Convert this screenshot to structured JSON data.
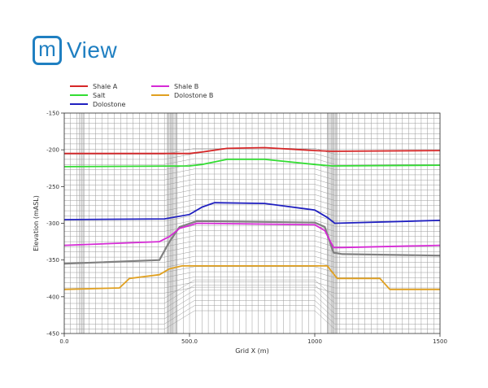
{
  "logo": {
    "mark": "m",
    "text": "View",
    "color": "#1f7fc1"
  },
  "chart_data": {
    "type": "line",
    "title": "",
    "xlabel": "Grid X  (m)",
    "ylabel": "Elevation  (mASL)",
    "xlim": [
      0,
      1500
    ],
    "ylim": [
      -450,
      -150
    ],
    "xticks": [
      {
        "value": 0,
        "label": "0.0"
      },
      {
        "value": 500,
        "label": "500.0"
      },
      {
        "value": 1000,
        "label": "1000"
      },
      {
        "value": 1500,
        "label": "1500"
      }
    ],
    "yticks": [
      -150,
      -200,
      -250,
      -300,
      -350,
      -400,
      -450
    ],
    "grid": true,
    "legend": "top-left",
    "series": [
      {
        "name": "Shale A",
        "color": "#d62728",
        "x": [
          0,
          500,
          550,
          650,
          800,
          1000,
          1070,
          1500
        ],
        "y": [
          -205,
          -205,
          -203,
          -198,
          -197,
          -201,
          -202,
          -201
        ]
      },
      {
        "name": "Shale B",
        "color": "#d62ad6",
        "x": [
          0,
          380,
          420,
          460,
          530,
          1000,
          1040,
          1075,
          1110,
          1500
        ],
        "y": [
          -330,
          -325,
          -318,
          -307,
          -300,
          -302,
          -310,
          -333,
          -333,
          -330
        ]
      },
      {
        "name": "Salt",
        "color": "#33dd33",
        "x": [
          0,
          500,
          550,
          650,
          800,
          1000,
          1070,
          1500
        ],
        "y": [
          -223,
          -222,
          -220,
          -213,
          -213,
          -220,
          -222,
          -221
        ]
      },
      {
        "name": "Dolostone B",
        "color": "#e0a020",
        "x": [
          0,
          220,
          260,
          380,
          420,
          470,
          1050,
          1090,
          1260,
          1300,
          1500
        ],
        "y": [
          -390,
          -388,
          -375,
          -370,
          -362,
          -358,
          -358,
          -375,
          -375,
          -390,
          -390
        ]
      },
      {
        "name": "Dolostone",
        "color": "#2020c0",
        "x": [
          0,
          400,
          500,
          550,
          600,
          800,
          1000,
          1050,
          1080,
          1500
        ],
        "y": [
          -295,
          -294,
          -288,
          -278,
          -272,
          -273,
          -282,
          -292,
          -300,
          -296
        ]
      }
    ],
    "mesh_lines": [
      {
        "color": "#808080",
        "x": [
          0,
          380,
          420,
          460,
          530,
          1000,
          1040,
          1075,
          1110,
          1500
        ],
        "y": [
          -355,
          -350,
          -325,
          -305,
          -297,
          -299,
          -305,
          -340,
          -342,
          -344
        ]
      }
    ]
  }
}
